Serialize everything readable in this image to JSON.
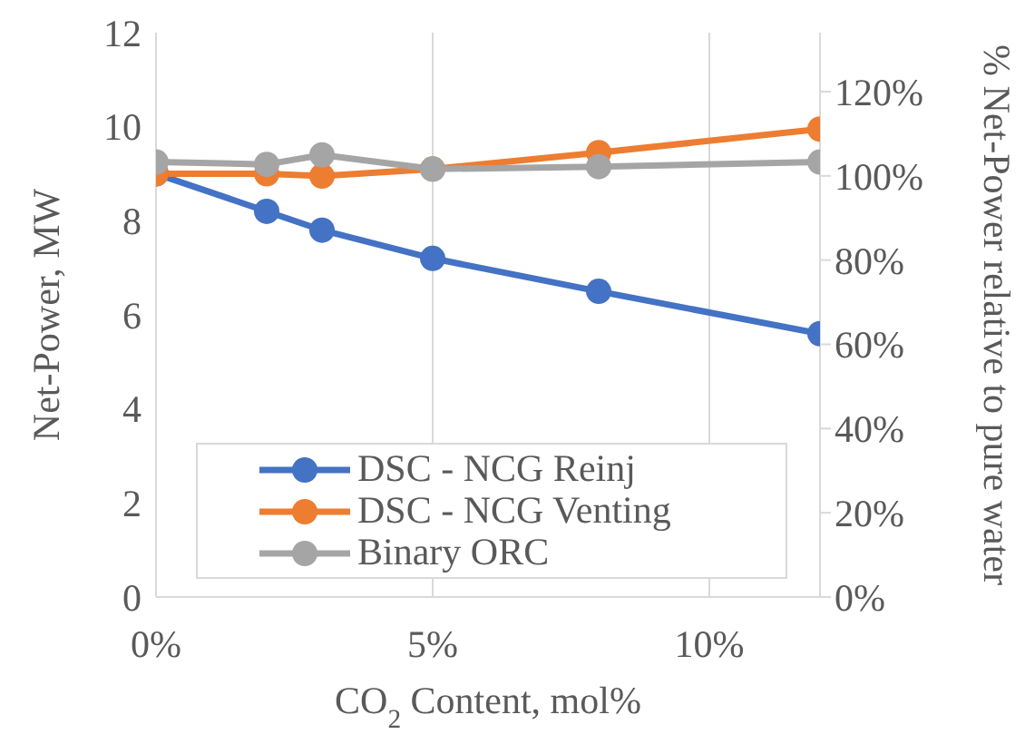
{
  "chart_data": {
    "type": "line",
    "xlabel": "CO$_{2}$ Content, mol%",
    "ylabel": "Net-Power, MW",
    "y2label": "% Net-Power relative to pure water",
    "x": [
      0,
      2,
      3,
      5,
      8,
      12
    ],
    "series": [
      {
        "name": "DSC - NCG Reinj",
        "color": "#4472c4",
        "values": [
          9.0,
          8.2,
          7.8,
          7.2,
          6.5,
          5.6
        ]
      },
      {
        "name": "DSC - NCG Venting",
        "color": "#ed7d31",
        "values": [
          9.0,
          9.0,
          8.95,
          9.1,
          9.45,
          9.95
        ]
      },
      {
        "name": "Binary ORC",
        "color": "#a5a5a5",
        "values": [
          9.25,
          9.2,
          9.4,
          9.1,
          9.15,
          9.25
        ]
      }
    ],
    "xlim": [
      0,
      12
    ],
    "xticks": [
      {
        "value": 0,
        "label": "0%"
      },
      {
        "value": 5,
        "label": "5%"
      },
      {
        "value": 10,
        "label": "10%"
      }
    ],
    "ylim": [
      0,
      12
    ],
    "yticks": [
      0,
      2,
      4,
      6,
      8,
      10,
      12
    ],
    "y2lim": [
      0,
      134
    ],
    "y2ticks": [
      {
        "value": 0,
        "label": "0%"
      },
      {
        "value": 20,
        "label": "20%"
      },
      {
        "value": 40,
        "label": "40%"
      },
      {
        "value": 60,
        "label": "60%"
      },
      {
        "value": 80,
        "label": "80%"
      },
      {
        "value": 100,
        "label": "100%"
      },
      {
        "value": 120,
        "label": "120%"
      }
    ],
    "grid": true,
    "legend": "bottom",
    "marker": "circle",
    "line_style": "solid"
  }
}
